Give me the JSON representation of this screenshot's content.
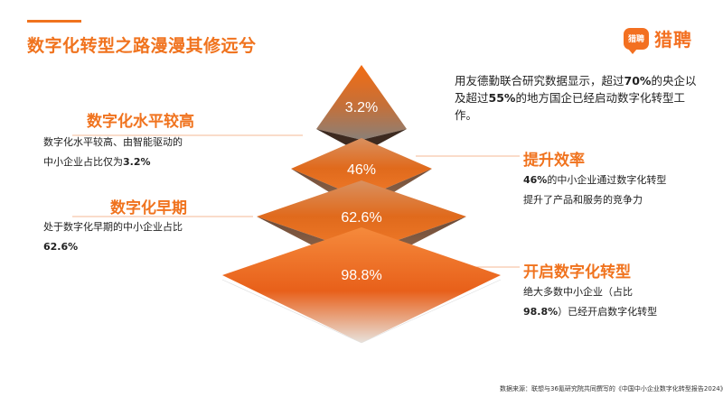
{
  "title": "数字化转型之路漫漫其修远兮",
  "logo": {
    "badge": "猎聘",
    "text": "猎聘"
  },
  "intro": {
    "pre": "用友德勤联合研究数据显示，超过",
    "pct1": "70%",
    "mid": "的央企以及超过",
    "pct2": "55%",
    "post": "的地方国企已经启动数字化转型工作。"
  },
  "levels": [
    {
      "pct_label": "3.2%",
      "value": 3.2
    },
    {
      "pct_label": "46%",
      "value": 46
    },
    {
      "pct_label": "62.6%",
      "value": 62.6
    },
    {
      "pct_label": "98.8%",
      "value": 98.8
    }
  ],
  "left_blocks": [
    {
      "heading": "数字化水平较高",
      "line1": "数字化水平较高、由智能驱动的",
      "line2_text": "中小企业占比仅为",
      "line2_bold": "3.2%"
    },
    {
      "heading": "数字化早期",
      "line1": "处于数字化早期的中小企业占比",
      "line2_bold": "62.6%"
    }
  ],
  "right_blocks": [
    {
      "heading": "提升效率",
      "line1_bold": "46%",
      "line1_text": "的中小企业通过数字化转型",
      "line2": "提升了产品和服务的竞争力"
    },
    {
      "heading": "开启数字化转型",
      "line1": "绝大多数中小企业（占比",
      "line2_bold": "98.8%",
      "line2_text": "）已经开启数字化转型"
    }
  ],
  "source": "数据来源：联想与36氪研究院共同撰写的《中国中小企业数字化转型报告2024》",
  "colors": {
    "accent": "#f0731e",
    "brand": "#f37021"
  }
}
